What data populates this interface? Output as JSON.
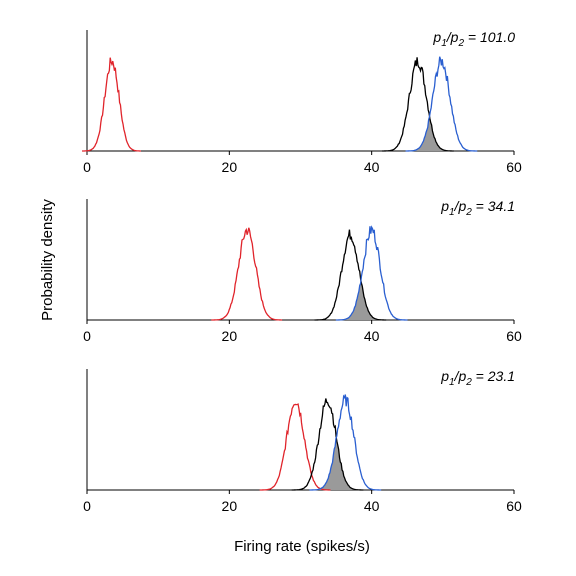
{
  "figure": {
    "ylabel": "Probability density",
    "xlabel": "Firing rate (spikes/s)"
  },
  "chart_data": [
    {
      "type": "area",
      "annotation_label": "p1/p2 = 101.0",
      "annotation": {
        "p_label": "p",
        "num_sub": "1",
        "slash": "/",
        "den_sub": "2",
        "value_text": " = 101.0"
      },
      "xlim": [
        0,
        60
      ],
      "xticks": [
        "0",
        "20",
        "40",
        "60"
      ],
      "ylabel": "Probability density",
      "series": [
        {
          "color": "#e0242b",
          "mean": 3.5,
          "sd": 1.0,
          "peak": 1.0
        },
        {
          "color": "#000000",
          "mean": 46.5,
          "sd": 1.2,
          "peak": 1.0
        },
        {
          "color": "#2a5fd0",
          "mean": 49.8,
          "sd": 1.2,
          "peak": 1.0
        }
      ],
      "overlap_fill": "#9a9a9a"
    },
    {
      "type": "area",
      "annotation_label": "p1/p2 = 34.1",
      "annotation": {
        "p_label": "p",
        "num_sub": "1",
        "slash": "/",
        "den_sub": "2",
        "value_text": " = 34.1"
      },
      "xlim": [
        0,
        60
      ],
      "xticks": [
        "0",
        "20",
        "40",
        "60"
      ],
      "ylabel": "Probability density",
      "series": [
        {
          "color": "#e0242b",
          "mean": 22.5,
          "sd": 1.2,
          "peak": 1.0
        },
        {
          "color": "#000000",
          "mean": 37.0,
          "sd": 1.2,
          "peak": 0.95
        },
        {
          "color": "#2a5fd0",
          "mean": 40.0,
          "sd": 1.2,
          "peak": 1.0
        }
      ],
      "overlap_fill": "#9a9a9a"
    },
    {
      "type": "area",
      "annotation_label": "p1/p2 = 23.1",
      "annotation": {
        "p_label": "p",
        "num_sub": "1",
        "slash": "/",
        "den_sub": "2",
        "value_text": " = 23.1"
      },
      "xlim": [
        0,
        60
      ],
      "xticks": [
        "0",
        "20",
        "40",
        "60"
      ],
      "ylabel": "Probability density",
      "series": [
        {
          "color": "#e0242b",
          "mean": 29.3,
          "sd": 1.2,
          "peak": 1.0
        },
        {
          "color": "#000000",
          "mean": 33.8,
          "sd": 1.2,
          "peak": 1.0
        },
        {
          "color": "#2a5fd0",
          "mean": 36.3,
          "sd": 1.2,
          "peak": 1.0
        }
      ],
      "overlap_fill": "#9a9a9a"
    }
  ]
}
